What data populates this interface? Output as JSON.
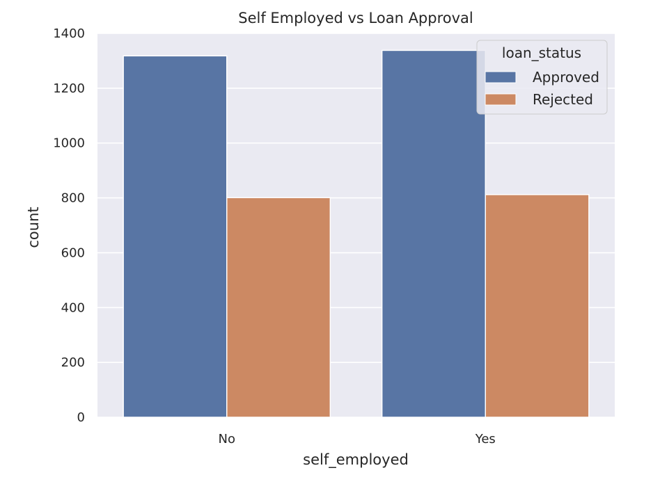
{
  "chart_data": {
    "type": "bar",
    "title": "Self Employed vs Loan Approval",
    "xlabel": "self_employed",
    "ylabel": "count",
    "categories": [
      "No",
      "Yes"
    ],
    "series": [
      {
        "name": "Approved",
        "values": [
          1318,
          1338
        ],
        "color": "#5875a4"
      },
      {
        "name": "Rejected",
        "values": [
          801,
          812
        ],
        "color": "#cc8963"
      }
    ],
    "ylim": [
      0,
      1400
    ],
    "yticks": [
      0,
      200,
      400,
      600,
      800,
      1000,
      1200,
      1400
    ],
    "grid": true,
    "legend": {
      "title": "loan_status",
      "placement": "top-right"
    },
    "background_color": "#eaeaf2",
    "grid_color": "#ffffff"
  }
}
